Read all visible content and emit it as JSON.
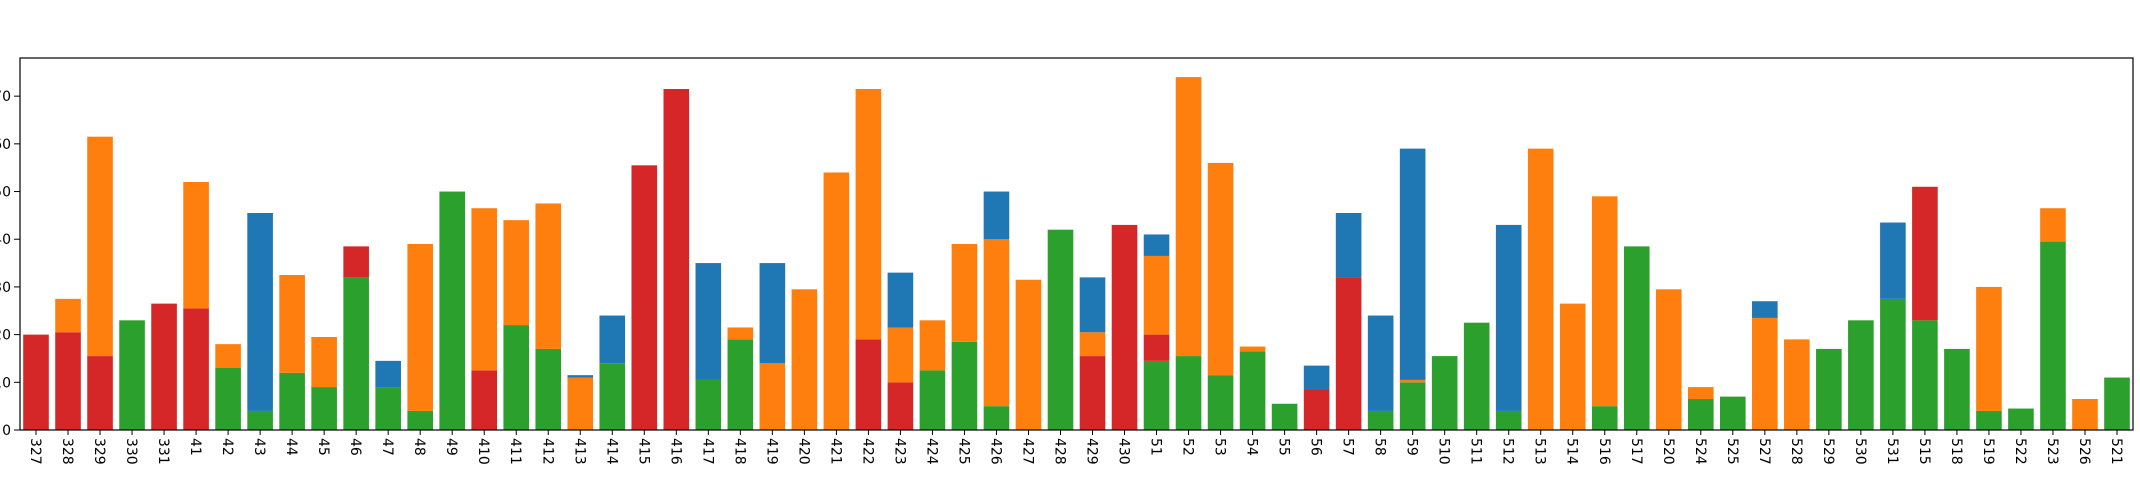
{
  "chart_data": {
    "type": "bar",
    "stacked": true,
    "title": "",
    "xlabel": "",
    "ylabel": "",
    "ylim": [
      0,
      78
    ],
    "grid": false,
    "legend": "none",
    "yticks": [
      0,
      10,
      20,
      30,
      40,
      50,
      60,
      70
    ],
    "categories": [
      "327",
      "328",
      "329",
      "330",
      "331",
      "41",
      "42",
      "43",
      "44",
      "45",
      "46",
      "47",
      "48",
      "49",
      "410",
      "411",
      "412",
      "413",
      "414",
      "415",
      "416",
      "417",
      "418",
      "419",
      "420",
      "421",
      "422",
      "423",
      "424",
      "425",
      "426",
      "427",
      "428",
      "429",
      "430",
      "51",
      "52",
      "53",
      "54",
      "55",
      "56",
      "57",
      "58",
      "59",
      "510",
      "511",
      "512",
      "513",
      "514",
      "516",
      "517",
      "520",
      "524",
      "525",
      "527",
      "528",
      "529",
      "530",
      "531",
      "515",
      "518",
      "519",
      "522",
      "523",
      "526",
      "521"
    ],
    "series": [
      {
        "color": "#2ca02c",
        "values": [
          0,
          0,
          0,
          23,
          0,
          0,
          13,
          4,
          12,
          9,
          32,
          9,
          4,
          50,
          0,
          22,
          17,
          0,
          14,
          0,
          0,
          10.5,
          19,
          0,
          0,
          0,
          0,
          0,
          12.5,
          18.5,
          5,
          0,
          42,
          0,
          0,
          14.5,
          15.5,
          11.5,
          16.5,
          5.5,
          0,
          0,
          4,
          10,
          15.5,
          22.5,
          4,
          0,
          0,
          5,
          38.5,
          0,
          6.5,
          7,
          0,
          0,
          17,
          23,
          27.5,
          23,
          17,
          4,
          4.5,
          39.5,
          0,
          11
        ]
      },
      {
        "color": "#d62728",
        "values": [
          20,
          20.5,
          15.5,
          0,
          26.5,
          25.5,
          0,
          0,
          0,
          0,
          6.5,
          0,
          0,
          0,
          12.5,
          0,
          0,
          0,
          0,
          55.5,
          71.5,
          0,
          0,
          0,
          0,
          0,
          19,
          10,
          0,
          0,
          0,
          0,
          0,
          15.5,
          43,
          5.5,
          0,
          0,
          0,
          0,
          8.5,
          32,
          0,
          0,
          0,
          0,
          0,
          0,
          0,
          0,
          0,
          0,
          0,
          0,
          0,
          0,
          0,
          0,
          0,
          28,
          0,
          0,
          0,
          0,
          0,
          0
        ]
      },
      {
        "color": "#ff7f0e",
        "values": [
          0,
          7,
          46,
          0,
          0,
          26.5,
          5,
          0,
          20.5,
          10.5,
          0,
          0,
          35,
          0,
          34,
          22,
          30.5,
          11,
          0,
          0,
          0,
          0,
          2.5,
          14,
          29.5,
          54,
          52.5,
          11.5,
          10.5,
          20.5,
          35,
          31.5,
          0,
          5,
          0,
          16.5,
          58.5,
          44.5,
          1,
          0,
          0,
          0,
          0,
          0.5,
          0,
          0,
          0,
          59,
          26.5,
          44,
          0,
          29.5,
          2.5,
          0,
          23.5,
          19,
          0,
          0,
          0,
          0,
          0,
          26,
          0,
          7,
          6.5,
          0
        ]
      },
      {
        "color": "#1f77b4",
        "values": [
          0,
          0,
          0,
          0,
          0,
          0,
          0,
          41.5,
          0,
          0,
          0,
          5.5,
          0,
          0,
          0,
          0,
          0,
          0.5,
          10,
          0,
          0,
          24.5,
          0,
          21,
          0,
          0,
          0,
          11.5,
          0,
          0,
          10,
          0,
          0,
          11.5,
          0,
          4.5,
          0,
          0,
          0,
          0,
          5,
          13.5,
          20,
          48.5,
          0,
          0,
          39,
          0,
          0,
          0,
          0,
          0,
          0,
          0,
          3.5,
          0,
          0,
          0,
          16,
          0,
          0,
          0,
          0,
          0,
          0,
          0
        ]
      }
    ]
  }
}
